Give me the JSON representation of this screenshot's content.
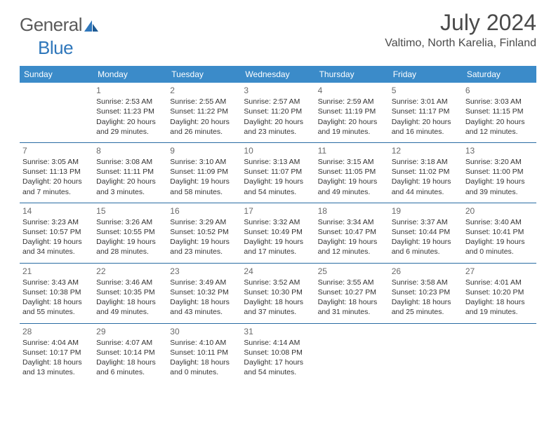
{
  "brand": {
    "part1": "General",
    "part2": "Blue"
  },
  "header": {
    "title": "July 2024",
    "location": "Valtimo, North Karelia, Finland"
  },
  "colors": {
    "headerBg": "#3b8bc9",
    "rule": "#2a6ca3",
    "text": "#333",
    "muted": "#6a6a6a",
    "title": "#4a4a4a"
  },
  "dayNames": [
    "Sunday",
    "Monday",
    "Tuesday",
    "Wednesday",
    "Thursday",
    "Friday",
    "Saturday"
  ],
  "weeks": [
    [
      null,
      {
        "n": "1",
        "l1": "Sunrise: 2:53 AM",
        "l2": "Sunset: 11:23 PM",
        "l3": "Daylight: 20 hours",
        "l4": "and 29 minutes."
      },
      {
        "n": "2",
        "l1": "Sunrise: 2:55 AM",
        "l2": "Sunset: 11:22 PM",
        "l3": "Daylight: 20 hours",
        "l4": "and 26 minutes."
      },
      {
        "n": "3",
        "l1": "Sunrise: 2:57 AM",
        "l2": "Sunset: 11:20 PM",
        "l3": "Daylight: 20 hours",
        "l4": "and 23 minutes."
      },
      {
        "n": "4",
        "l1": "Sunrise: 2:59 AM",
        "l2": "Sunset: 11:19 PM",
        "l3": "Daylight: 20 hours",
        "l4": "and 19 minutes."
      },
      {
        "n": "5",
        "l1": "Sunrise: 3:01 AM",
        "l2": "Sunset: 11:17 PM",
        "l3": "Daylight: 20 hours",
        "l4": "and 16 minutes."
      },
      {
        "n": "6",
        "l1": "Sunrise: 3:03 AM",
        "l2": "Sunset: 11:15 PM",
        "l3": "Daylight: 20 hours",
        "l4": "and 12 minutes."
      }
    ],
    [
      {
        "n": "7",
        "l1": "Sunrise: 3:05 AM",
        "l2": "Sunset: 11:13 PM",
        "l3": "Daylight: 20 hours",
        "l4": "and 7 minutes."
      },
      {
        "n": "8",
        "l1": "Sunrise: 3:08 AM",
        "l2": "Sunset: 11:11 PM",
        "l3": "Daylight: 20 hours",
        "l4": "and 3 minutes."
      },
      {
        "n": "9",
        "l1": "Sunrise: 3:10 AM",
        "l2": "Sunset: 11:09 PM",
        "l3": "Daylight: 19 hours",
        "l4": "and 58 minutes."
      },
      {
        "n": "10",
        "l1": "Sunrise: 3:13 AM",
        "l2": "Sunset: 11:07 PM",
        "l3": "Daylight: 19 hours",
        "l4": "and 54 minutes."
      },
      {
        "n": "11",
        "l1": "Sunrise: 3:15 AM",
        "l2": "Sunset: 11:05 PM",
        "l3": "Daylight: 19 hours",
        "l4": "and 49 minutes."
      },
      {
        "n": "12",
        "l1": "Sunrise: 3:18 AM",
        "l2": "Sunset: 11:02 PM",
        "l3": "Daylight: 19 hours",
        "l4": "and 44 minutes."
      },
      {
        "n": "13",
        "l1": "Sunrise: 3:20 AM",
        "l2": "Sunset: 11:00 PM",
        "l3": "Daylight: 19 hours",
        "l4": "and 39 minutes."
      }
    ],
    [
      {
        "n": "14",
        "l1": "Sunrise: 3:23 AM",
        "l2": "Sunset: 10:57 PM",
        "l3": "Daylight: 19 hours",
        "l4": "and 34 minutes."
      },
      {
        "n": "15",
        "l1": "Sunrise: 3:26 AM",
        "l2": "Sunset: 10:55 PM",
        "l3": "Daylight: 19 hours",
        "l4": "and 28 minutes."
      },
      {
        "n": "16",
        "l1": "Sunrise: 3:29 AM",
        "l2": "Sunset: 10:52 PM",
        "l3": "Daylight: 19 hours",
        "l4": "and 23 minutes."
      },
      {
        "n": "17",
        "l1": "Sunrise: 3:32 AM",
        "l2": "Sunset: 10:49 PM",
        "l3": "Daylight: 19 hours",
        "l4": "and 17 minutes."
      },
      {
        "n": "18",
        "l1": "Sunrise: 3:34 AM",
        "l2": "Sunset: 10:47 PM",
        "l3": "Daylight: 19 hours",
        "l4": "and 12 minutes."
      },
      {
        "n": "19",
        "l1": "Sunrise: 3:37 AM",
        "l2": "Sunset: 10:44 PM",
        "l3": "Daylight: 19 hours",
        "l4": "and 6 minutes."
      },
      {
        "n": "20",
        "l1": "Sunrise: 3:40 AM",
        "l2": "Sunset: 10:41 PM",
        "l3": "Daylight: 19 hours",
        "l4": "and 0 minutes."
      }
    ],
    [
      {
        "n": "21",
        "l1": "Sunrise: 3:43 AM",
        "l2": "Sunset: 10:38 PM",
        "l3": "Daylight: 18 hours",
        "l4": "and 55 minutes."
      },
      {
        "n": "22",
        "l1": "Sunrise: 3:46 AM",
        "l2": "Sunset: 10:35 PM",
        "l3": "Daylight: 18 hours",
        "l4": "and 49 minutes."
      },
      {
        "n": "23",
        "l1": "Sunrise: 3:49 AM",
        "l2": "Sunset: 10:32 PM",
        "l3": "Daylight: 18 hours",
        "l4": "and 43 minutes."
      },
      {
        "n": "24",
        "l1": "Sunrise: 3:52 AM",
        "l2": "Sunset: 10:30 PM",
        "l3": "Daylight: 18 hours",
        "l4": "and 37 minutes."
      },
      {
        "n": "25",
        "l1": "Sunrise: 3:55 AM",
        "l2": "Sunset: 10:27 PM",
        "l3": "Daylight: 18 hours",
        "l4": "and 31 minutes."
      },
      {
        "n": "26",
        "l1": "Sunrise: 3:58 AM",
        "l2": "Sunset: 10:23 PM",
        "l3": "Daylight: 18 hours",
        "l4": "and 25 minutes."
      },
      {
        "n": "27",
        "l1": "Sunrise: 4:01 AM",
        "l2": "Sunset: 10:20 PM",
        "l3": "Daylight: 18 hours",
        "l4": "and 19 minutes."
      }
    ],
    [
      {
        "n": "28",
        "l1": "Sunrise: 4:04 AM",
        "l2": "Sunset: 10:17 PM",
        "l3": "Daylight: 18 hours",
        "l4": "and 13 minutes."
      },
      {
        "n": "29",
        "l1": "Sunrise: 4:07 AM",
        "l2": "Sunset: 10:14 PM",
        "l3": "Daylight: 18 hours",
        "l4": "and 6 minutes."
      },
      {
        "n": "30",
        "l1": "Sunrise: 4:10 AM",
        "l2": "Sunset: 10:11 PM",
        "l3": "Daylight: 18 hours",
        "l4": "and 0 minutes."
      },
      {
        "n": "31",
        "l1": "Sunrise: 4:14 AM",
        "l2": "Sunset: 10:08 PM",
        "l3": "Daylight: 17 hours",
        "l4": "and 54 minutes."
      },
      null,
      null,
      null
    ]
  ]
}
